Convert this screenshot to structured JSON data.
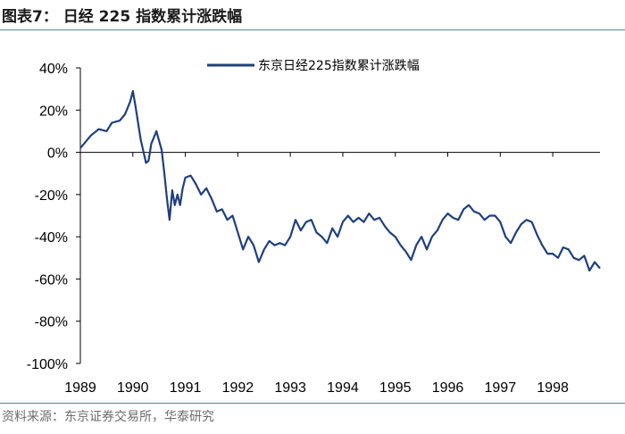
{
  "header": {
    "title": "图表7：  日经 225 指数累计涨跌幅"
  },
  "footer": {
    "source": "资料来源：东京证券交易所，华泰研究"
  },
  "colors": {
    "line": "#1f3f7f",
    "rule": "#5b7fa6"
  },
  "chart_data": {
    "type": "line",
    "title": "",
    "xlabel": "",
    "ylabel": "",
    "ylim": [
      -100,
      40
    ],
    "xlim": [
      1989,
      1998.9
    ],
    "yticks": [
      40,
      20,
      0,
      -20,
      -40,
      -60,
      -80,
      -100
    ],
    "ytick_labels": [
      "40%",
      "20%",
      "0%",
      "-20%",
      "-40%",
      "-60%",
      "-80%",
      "-100%"
    ],
    "xtick_labels": [
      "1989",
      "1990",
      "1991",
      "1992",
      "1993",
      "1994",
      "1995",
      "1996",
      "1997",
      "1998"
    ],
    "grid": false,
    "legend_position": "top-center",
    "series": [
      {
        "name": "东京日经225指数累计涨跌幅",
        "x": [
          1989.0,
          1989.1,
          1989.2,
          1989.35,
          1989.5,
          1989.6,
          1989.75,
          1989.85,
          1989.95,
          1990.0,
          1990.05,
          1990.15,
          1990.25,
          1990.3,
          1990.35,
          1990.45,
          1990.55,
          1990.6,
          1990.65,
          1990.7,
          1990.75,
          1990.8,
          1990.85,
          1990.9,
          1990.95,
          1991.0,
          1991.1,
          1991.2,
          1991.3,
          1991.4,
          1991.5,
          1991.6,
          1991.7,
          1991.8,
          1991.9,
          1992.0,
          1992.1,
          1992.2,
          1992.3,
          1992.4,
          1992.5,
          1992.6,
          1992.7,
          1992.8,
          1992.9,
          1993.0,
          1993.1,
          1993.2,
          1993.3,
          1993.4,
          1993.5,
          1993.6,
          1993.7,
          1993.8,
          1993.9,
          1994.0,
          1994.1,
          1994.2,
          1994.3,
          1994.4,
          1994.5,
          1994.6,
          1994.7,
          1994.8,
          1994.9,
          1995.0,
          1995.1,
          1995.2,
          1995.3,
          1995.4,
          1995.5,
          1995.6,
          1995.7,
          1995.8,
          1995.9,
          1996.0,
          1996.1,
          1996.2,
          1996.3,
          1996.4,
          1996.5,
          1996.6,
          1996.7,
          1996.8,
          1996.9,
          1997.0,
          1997.1,
          1997.2,
          1997.3,
          1997.4,
          1997.5,
          1997.6,
          1997.7,
          1997.8,
          1997.9,
          1998.0,
          1998.1,
          1998.2,
          1998.3,
          1998.4,
          1998.5,
          1998.6,
          1998.7,
          1998.8,
          1998.9
        ],
        "y": [
          2,
          5,
          8,
          11,
          10,
          14,
          15,
          18,
          24,
          29,
          22,
          6,
          -5,
          -4,
          4,
          10,
          1,
          -10,
          -22,
          -32,
          -18,
          -25,
          -20,
          -25,
          -17,
          -12,
          -11,
          -15,
          -20,
          -17,
          -22,
          -28,
          -27,
          -32,
          -30,
          -38,
          -46,
          -40,
          -44,
          -52,
          -46,
          -42,
          -44,
          -43,
          -44,
          -40,
          -32,
          -37,
          -33,
          -32,
          -38,
          -40,
          -43,
          -36,
          -40,
          -33,
          -30,
          -33,
          -31,
          -33,
          -29,
          -32,
          -31,
          -35,
          -38,
          -40,
          -44,
          -47,
          -51,
          -44,
          -40,
          -46,
          -40,
          -37,
          -32,
          -29,
          -31,
          -32,
          -27,
          -25,
          -28,
          -29,
          -32,
          -30,
          -30,
          -33,
          -40,
          -43,
          -38,
          -34,
          -32,
          -33,
          -39,
          -44,
          -48,
          -48,
          -50,
          -45,
          -46,
          -50,
          -51,
          -49,
          -56,
          -52,
          -55
        ]
      }
    ]
  }
}
